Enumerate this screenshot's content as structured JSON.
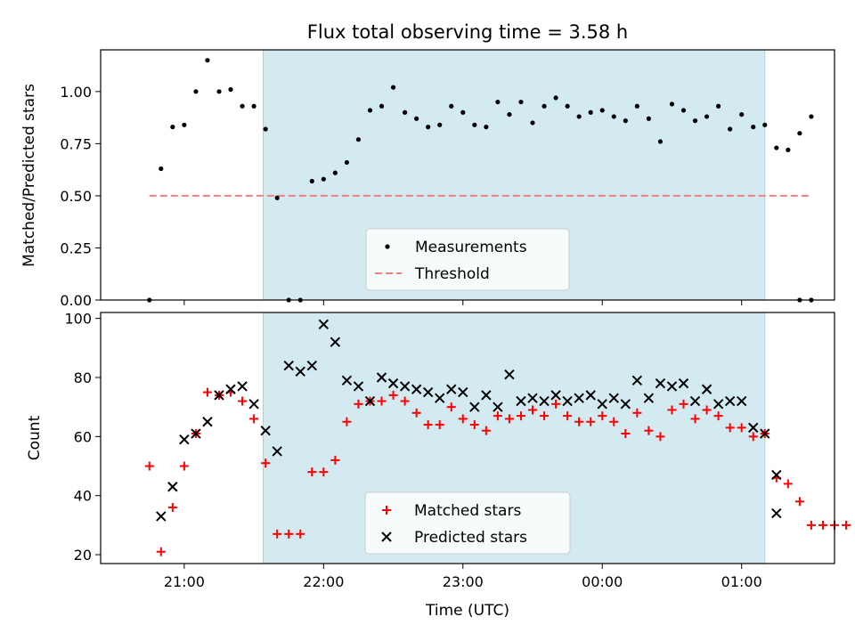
{
  "chart_data": [
    {
      "type": "scatter",
      "title": "Flux total observing time = 3.58 h",
      "ylabel": "Matched/Predicted stars",
      "xlabel": "",
      "xlim": [
        "20:24",
        "01:40"
      ],
      "ylim": [
        0,
        1.2
      ],
      "yticks": [
        0.0,
        0.25,
        0.5,
        0.75,
        1.0
      ],
      "ytick_labels": [
        "0.00",
        "0.25",
        "0.50",
        "0.75",
        "1.00"
      ],
      "grid": false,
      "legend_position": "lower center",
      "shaded_region": {
        "start": "21:34",
        "end": "01:10",
        "color": "#d3eaf1"
      },
      "series": [
        {
          "name": "Measurements",
          "marker": "dot",
          "color": "#000000",
          "x": [
            "20:45",
            "20:50",
            "20:55",
            "21:00",
            "21:05",
            "21:10",
            "21:15",
            "21:20",
            "21:25",
            "21:30",
            "21:35",
            "21:40",
            "21:45",
            "21:50",
            "21:55",
            "22:00",
            "22:05",
            "22:10",
            "22:15",
            "22:20",
            "22:25",
            "22:30",
            "22:35",
            "22:40",
            "22:45",
            "22:50",
            "22:55",
            "23:00",
            "23:05",
            "23:10",
            "23:15",
            "23:20",
            "23:25",
            "23:30",
            "23:35",
            "23:40",
            "23:45",
            "23:50",
            "23:55",
            "00:00",
            "00:05",
            "00:10",
            "00:15",
            "00:20",
            "00:25",
            "00:30",
            "00:35",
            "00:40",
            "00:45",
            "00:50",
            "00:55",
            "01:00",
            "01:05",
            "01:10",
            "01:15",
            "01:20",
            "01:25",
            "01:30"
          ],
          "y": [
            0.0,
            0.63,
            0.83,
            0.84,
            1.0,
            1.15,
            1.0,
            1.01,
            0.93,
            0.93,
            0.82,
            0.49,
            0.0,
            0.0,
            0.57,
            0.58,
            0.61,
            0.66,
            0.77,
            0.91,
            0.93,
            1.02,
            0.9,
            0.87,
            0.83,
            0.84,
            0.93,
            0.9,
            0.84,
            0.83,
            0.95,
            0.89,
            0.95,
            0.85,
            0.93,
            0.97,
            0.93,
            0.88,
            0.9,
            0.91,
            0.88,
            0.86,
            0.93,
            0.87,
            0.76,
            0.94,
            0.91,
            0.86,
            0.88,
            0.93,
            0.82,
            0.89,
            0.83,
            0.84,
            0.73,
            0.72,
            0.8,
            0.88
          ],
          "trailing_zero_points": [
            "01:25",
            "01:30"
          ]
        },
        {
          "name": "Threshold",
          "style": "dashed",
          "color": "#f08080",
          "x": [
            "20:45",
            "01:30"
          ],
          "y": [
            0.5,
            0.5
          ]
        }
      ]
    },
    {
      "type": "scatter",
      "title": "",
      "ylabel": "Count",
      "xlabel": "Time (UTC)",
      "xlim": [
        "20:24",
        "01:40"
      ],
      "ylim": [
        17,
        102
      ],
      "yticks": [
        20,
        40,
        60,
        80,
        100
      ],
      "xtick_labels": [
        "21:00",
        "22:00",
        "23:00",
        "00:00",
        "01:00"
      ],
      "grid": false,
      "legend_position": "lower center",
      "shaded_region": {
        "start": "21:34",
        "end": "01:10",
        "color": "#d3eaf1"
      },
      "series": [
        {
          "name": "Matched stars",
          "marker": "plus",
          "color": "#ff0000",
          "x": [
            "20:45",
            "20:50",
            "20:55",
            "21:00",
            "21:05",
            "21:10",
            "21:15",
            "21:20",
            "21:25",
            "21:30",
            "21:35",
            "21:40",
            "21:45",
            "21:50",
            "21:55",
            "22:00",
            "22:05",
            "22:10",
            "22:15",
            "22:20",
            "22:25",
            "22:30",
            "22:35",
            "22:40",
            "22:45",
            "22:50",
            "22:55",
            "23:00",
            "23:05",
            "23:10",
            "23:15",
            "23:20",
            "23:25",
            "23:30",
            "23:35",
            "23:40",
            "23:45",
            "23:50",
            "23:55",
            "00:00",
            "00:05",
            "00:10",
            "00:15",
            "00:20",
            "00:25",
            "00:30",
            "00:35",
            "00:40",
            "00:45",
            "00:50",
            "00:55",
            "01:00",
            "01:05",
            "01:10",
            "01:15",
            "01:20",
            "01:25",
            "01:30"
          ],
          "y": [
            50,
            21,
            36,
            50,
            61,
            75,
            74,
            75,
            72,
            66,
            51,
            27,
            27,
            27,
            48,
            48,
            52,
            65,
            71,
            72,
            72,
            74,
            72,
            68,
            64,
            64,
            70,
            66,
            64,
            62,
            67,
            66,
            67,
            69,
            67,
            71,
            67,
            65,
            65,
            67,
            65,
            61,
            68,
            62,
            60,
            69,
            71,
            66,
            69,
            67,
            63,
            63,
            60,
            61,
            46,
            44,
            38,
            30
          ],
          "trailing_points": {
            "x": [
              "01:35",
              "01:40",
              "01:45"
            ],
            "y": [
              30,
              30,
              30
            ]
          }
        },
        {
          "name": "Predicted stars",
          "marker": "x",
          "color": "#000000",
          "x": [
            "20:50",
            "20:55",
            "21:00",
            "21:05",
            "21:10",
            "21:15",
            "21:20",
            "21:25",
            "21:30",
            "21:35",
            "21:40",
            "21:45",
            "21:50",
            "21:55",
            "22:00",
            "22:05",
            "22:10",
            "22:15",
            "22:20",
            "22:25",
            "22:30",
            "22:35",
            "22:40",
            "22:45",
            "22:50",
            "22:55",
            "23:00",
            "23:05",
            "23:10",
            "23:15",
            "23:20",
            "23:25",
            "23:30",
            "23:35",
            "23:40",
            "23:45",
            "23:50",
            "23:55",
            "00:00",
            "00:05",
            "00:10",
            "00:15",
            "00:20",
            "00:25",
            "00:30",
            "00:35",
            "00:40",
            "00:45",
            "00:50",
            "00:55",
            "01:00",
            "01:05",
            "01:10",
            "01:15"
          ],
          "y": [
            33,
            43,
            59,
            61,
            65,
            74,
            76,
            77,
            71,
            62,
            55,
            84,
            82,
            84,
            98,
            92,
            79,
            77,
            72,
            80,
            78,
            77,
            76,
            75,
            73,
            76,
            75,
            70,
            74,
            70,
            81,
            72,
            73,
            72,
            74,
            72,
            73,
            74,
            71,
            73,
            71,
            79,
            73,
            78,
            77,
            78,
            72,
            76,
            71,
            72,
            72,
            63,
            61,
            47
          ],
          "trailing_points": {
            "x": [
              "01:15"
            ],
            "y": [
              34
            ]
          }
        }
      ]
    }
  ]
}
